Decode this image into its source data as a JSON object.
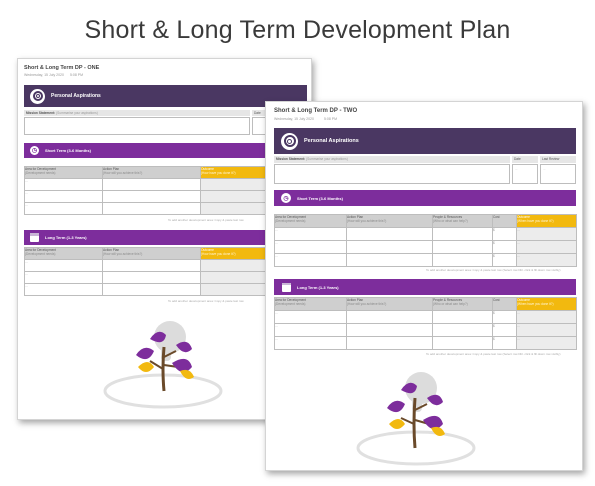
{
  "title": "Short & Long Term Development Plan",
  "doc_one": {
    "title": "Short & Long Term DP - ONE",
    "date": "Wednesday, 15 July 2020",
    "time": "5:08 PM",
    "aspirations_label": "Personal Aspirations",
    "mission_label": "Mission Statement:",
    "mission_hint": "(Summarise your aspirations)",
    "date_col": "Date",
    "short_term": "Short Term (3-6 Months)",
    "long_term": "Long Term (1-3 Years)",
    "col_area": "Area for Development",
    "col_area_hint": "(Development needs)",
    "col_action": "Action Plan",
    "col_action_hint": "(How will you achieve this?)",
    "col_outcome": "Outcome",
    "col_outcome_hint": "(How have you done it?)",
    "row_mark": "...",
    "note": "To add another development area: Copy & paste last row"
  },
  "doc_two": {
    "title": "Short & Long Term DP - TWO",
    "date": "Wednesday, 15 July 2020",
    "time": "5:08 PM",
    "aspirations_label": "Personal Aspirations",
    "mission_label": "Mission Statement:",
    "mission_hint": "(Summarise your aspirations)",
    "date_col": "Date",
    "last_review": "Last Review",
    "short_term": "Short Term (3-6 Months)",
    "long_term": "Long Term (1-3 Years)",
    "col_area": "Area for Development",
    "col_area_hint": "(Development needs)",
    "col_action": "Action Plan",
    "col_action_hint": "(How will you achieve this?)",
    "col_people": "People & Resources",
    "col_people_hint": "(Who or what can help?)",
    "col_cost": "Cost",
    "col_outcome": "Outcome",
    "col_outcome_hint": "(When have you done it?)",
    "row_mark": "...",
    "cost_mark": "$",
    "note": "To add another development area: Copy & paste last row (Select row Dbl. click & fill down row visibly)"
  },
  "colors": {
    "band": "#4a3762",
    "section": "#7d2d9c",
    "gold": "#f2b90f",
    "purple_leaf": "#7d2d9c",
    "yellow_leaf": "#f2b90f",
    "tree_head": "#dcdcdc"
  },
  "icons": [
    "target-icon",
    "clock-icon",
    "calendar-icon",
    "tree-illustration"
  ]
}
